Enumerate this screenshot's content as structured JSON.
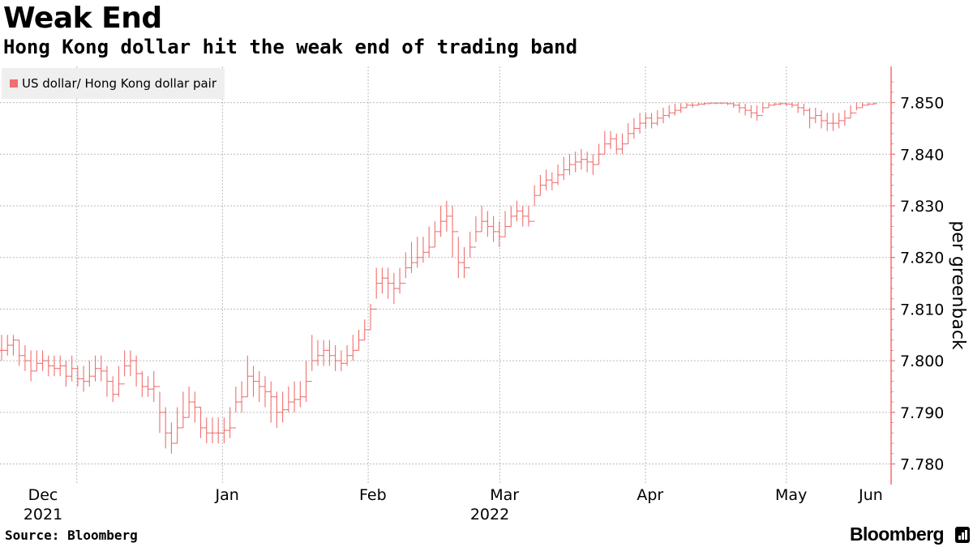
{
  "title": "Weak End",
  "subtitle": "Hong Kong dollar hit the weak end of trading band",
  "source": "Source: Bloomberg",
  "brand": "Bloomberg",
  "colors": {
    "series": "#f06f6f",
    "grid": "#bbbbbb",
    "axis": "#f06f6f"
  },
  "chart_data": {
    "type": "ohlc",
    "title": "Weak End",
    "subtitle": "Hong Kong dollar hit the weak end of trading band",
    "ylabel": "per greenback",
    "ylim": [
      7.776,
      7.857
    ],
    "y_ticks": [
      "7.780",
      "7.790",
      "7.800",
      "7.810",
      "7.820",
      "7.830",
      "7.840",
      "7.850"
    ],
    "y_tick_values": [
      7.78,
      7.79,
      7.8,
      7.81,
      7.82,
      7.83,
      7.84,
      7.85
    ],
    "x_range": [
      "2021-11-29",
      "2022-06-03"
    ],
    "x_ticks": [
      {
        "label": "Dec",
        "date": "2021-12-01"
      },
      {
        "label": "Jan",
        "date": "2022-01-01"
      },
      {
        "label": "Feb",
        "date": "2022-02-01"
      },
      {
        "label": "Mar",
        "date": "2022-03-01"
      },
      {
        "label": "Apr",
        "date": "2022-04-01"
      },
      {
        "label": "May",
        "date": "2022-05-01"
      },
      {
        "label": "Jun",
        "date": "2022-06-01"
      }
    ],
    "year_labels": [
      {
        "label": "2021",
        "date": "2021-12-01"
      },
      {
        "label": "2022",
        "date": "2022-03-01"
      }
    ],
    "grid": true,
    "legend_position": "top-left",
    "series": [
      {
        "name": "US dollar/ Hong Kong dollar pair",
        "close": [
          7.802,
          7.803,
          7.804,
          7.801,
          7.8,
          7.798,
          7.7995,
          7.8,
          7.799,
          7.7985,
          7.799,
          7.797,
          7.7985,
          7.7965,
          7.796,
          7.797,
          7.7985,
          7.798,
          7.796,
          7.7935,
          7.7955,
          7.799,
          7.8,
          7.7975,
          7.795,
          7.7945,
          7.795,
          7.79,
          7.786,
          7.784,
          7.787,
          7.789,
          7.792,
          7.791,
          7.787,
          7.786,
          7.786,
          7.786,
          7.7865,
          7.787,
          7.792,
          7.793,
          7.797,
          7.796,
          7.795,
          7.794,
          7.793,
          7.79,
          7.7905,
          7.792,
          7.7925,
          7.793,
          7.796,
          7.8,
          7.801,
          7.802,
          7.801,
          7.8,
          7.7995,
          7.801,
          7.802,
          7.804,
          7.806,
          7.81,
          7.815,
          7.816,
          7.815,
          7.814,
          7.815,
          7.818,
          7.819,
          7.82,
          7.821,
          7.822,
          7.825,
          7.827,
          7.828,
          7.825,
          7.819,
          7.818,
          7.822,
          7.825,
          7.827,
          7.826,
          7.825,
          7.824,
          7.826,
          7.828,
          7.829,
          7.828,
          7.827,
          7.832,
          7.834,
          7.835,
          7.8345,
          7.836,
          7.837,
          7.838,
          7.8385,
          7.839,
          7.8385,
          7.838,
          7.84,
          7.842,
          7.843,
          7.841,
          7.842,
          7.844,
          7.845,
          7.846,
          7.847,
          7.846,
          7.847,
          7.8475,
          7.848,
          7.8485,
          7.849,
          7.8495,
          7.8495,
          7.8497,
          7.8498,
          7.8499,
          7.8499,
          7.8499,
          7.8498,
          7.8495,
          7.849,
          7.8485,
          7.848,
          7.8475,
          7.849,
          7.8495,
          7.8497,
          7.8498,
          7.8497,
          7.8495,
          7.849,
          7.8485,
          7.847,
          7.8475,
          7.8465,
          7.846,
          7.846,
          7.8465,
          7.847,
          7.848,
          7.849,
          7.8495,
          7.8497,
          7.8498
        ],
        "range_high": [
          7.805,
          7.805,
          7.805,
          7.804,
          7.803,
          7.802,
          7.802,
          7.802,
          7.801,
          7.801,
          7.801,
          7.8,
          7.801,
          7.799,
          7.799,
          7.8,
          7.801,
          7.801,
          7.799,
          7.797,
          7.799,
          7.802,
          7.802,
          7.801,
          7.798,
          7.797,
          7.798,
          7.794,
          7.791,
          7.788,
          7.791,
          7.794,
          7.795,
          7.794,
          7.791,
          7.789,
          7.789,
          7.789,
          7.789,
          7.791,
          7.795,
          7.796,
          7.801,
          7.799,
          7.798,
          7.797,
          7.796,
          7.794,
          7.794,
          7.795,
          7.796,
          7.796,
          7.8,
          7.805,
          7.804,
          7.804,
          7.804,
          7.803,
          7.802,
          7.803,
          7.805,
          7.806,
          7.808,
          7.811,
          7.818,
          7.818,
          7.818,
          7.817,
          7.818,
          7.821,
          7.823,
          7.824,
          7.824,
          7.826,
          7.827,
          7.83,
          7.831,
          7.83,
          7.824,
          7.822,
          7.825,
          7.828,
          7.83,
          7.829,
          7.828,
          7.827,
          7.829,
          7.83,
          7.831,
          7.83,
          7.83,
          7.834,
          7.836,
          7.837,
          7.8365,
          7.838,
          7.8395,
          7.84,
          7.8405,
          7.841,
          7.8405,
          7.84,
          7.842,
          7.8445,
          7.8445,
          7.844,
          7.844,
          7.846,
          7.847,
          7.848,
          7.848,
          7.848,
          7.8485,
          7.849,
          7.8495,
          7.8498,
          7.8499,
          7.85,
          7.85,
          7.85,
          7.85,
          7.85,
          7.85,
          7.85,
          7.85,
          7.85,
          7.85,
          7.8498,
          7.8495,
          7.8495,
          7.85,
          7.85,
          7.85,
          7.85,
          7.85,
          7.85,
          7.85,
          7.8498,
          7.849,
          7.849,
          7.8485,
          7.848,
          7.848,
          7.848,
          7.8485,
          7.8495,
          7.85,
          7.85,
          7.85,
          7.85
        ],
        "range_low": [
          7.8,
          7.801,
          7.801,
          7.799,
          7.798,
          7.796,
          7.798,
          7.798,
          7.797,
          7.797,
          7.797,
          7.795,
          7.796,
          7.795,
          7.794,
          7.795,
          7.796,
          7.796,
          7.793,
          7.792,
          7.793,
          7.797,
          7.797,
          7.795,
          7.793,
          7.793,
          7.792,
          7.786,
          7.783,
          7.782,
          7.784,
          7.787,
          7.789,
          7.788,
          7.785,
          7.784,
          7.784,
          7.784,
          7.784,
          7.785,
          7.79,
          7.79,
          7.793,
          7.793,
          7.792,
          7.791,
          7.788,
          7.787,
          7.788,
          7.79,
          7.79,
          7.791,
          7.792,
          7.798,
          7.799,
          7.799,
          7.799,
          7.798,
          7.798,
          7.799,
          7.8,
          7.802,
          7.804,
          7.806,
          7.812,
          7.813,
          7.812,
          7.811,
          7.813,
          7.816,
          7.817,
          7.818,
          7.819,
          7.82,
          7.822,
          7.824,
          7.825,
          7.82,
          7.816,
          7.816,
          7.82,
          7.823,
          7.825,
          7.824,
          7.823,
          7.822,
          7.824,
          7.826,
          7.827,
          7.826,
          7.826,
          7.83,
          7.832,
          7.833,
          7.833,
          7.834,
          7.835,
          7.836,
          7.8365,
          7.837,
          7.8365,
          7.836,
          7.838,
          7.84,
          7.841,
          7.84,
          7.84,
          7.842,
          7.843,
          7.844,
          7.845,
          7.845,
          7.8455,
          7.846,
          7.847,
          7.8475,
          7.848,
          7.849,
          7.849,
          7.8494,
          7.8495,
          7.8497,
          7.8497,
          7.8497,
          7.8495,
          7.849,
          7.848,
          7.8475,
          7.847,
          7.8465,
          7.848,
          7.849,
          7.8494,
          7.8495,
          7.8494,
          7.849,
          7.848,
          7.8475,
          7.845,
          7.846,
          7.845,
          7.8445,
          7.8445,
          7.845,
          7.8455,
          7.847,
          7.8485,
          7.849,
          7.8494,
          7.8496
        ]
      }
    ]
  }
}
